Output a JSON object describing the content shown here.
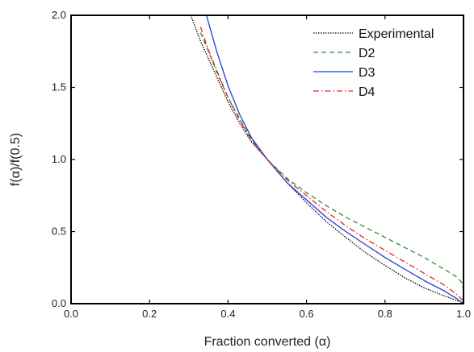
{
  "chart_data": {
    "type": "line",
    "xlabel": "Fraction converted (α)",
    "ylabel": "f(α)/f(0.5)",
    "xlim": [
      0.0,
      1.0
    ],
    "ylim": [
      0.0,
      2.0
    ],
    "x_ticks": [
      "0.0",
      "0.2",
      "0.4",
      "0.6",
      "0.8",
      "1.0"
    ],
    "y_ticks": [
      "0.0",
      "0.5",
      "1.0",
      "1.5",
      "2.0"
    ],
    "grid": false,
    "legend_position": "top-right",
    "series": [
      {
        "name": "Experimental",
        "color": "#000000",
        "dash": "1.5,1.5",
        "x": [
          0.305,
          0.33,
          0.35,
          0.38,
          0.4,
          0.43,
          0.46,
          0.5,
          0.55,
          0.6,
          0.65,
          0.7,
          0.75,
          0.8,
          0.85,
          0.9,
          0.95,
          0.98,
          1.0
        ],
        "y": [
          2.0,
          1.82,
          1.7,
          1.52,
          1.4,
          1.25,
          1.12,
          1.0,
          0.84,
          0.7,
          0.57,
          0.46,
          0.355,
          0.265,
          0.18,
          0.11,
          0.055,
          0.025,
          0.005
        ]
      },
      {
        "name": "D2",
        "color": "#2e8b2e",
        "dash": "6,4",
        "x": [
          0.33,
          0.35,
          0.38,
          0.4,
          0.43,
          0.46,
          0.5,
          0.55,
          0.6,
          0.65,
          0.7,
          0.75,
          0.8,
          0.85,
          0.9,
          0.95,
          0.98,
          0.995,
          1.0
        ],
        "y": [
          1.88,
          1.75,
          1.55,
          1.43,
          1.28,
          1.14,
          1.0,
          0.87,
          0.77,
          0.68,
          0.6,
          0.53,
          0.46,
          0.39,
          0.32,
          0.24,
          0.19,
          0.15,
          0.1
        ]
      },
      {
        "name": "D3",
        "color": "#1f3fd6",
        "dash": "",
        "x": [
          0.345,
          0.37,
          0.4,
          0.43,
          0.46,
          0.5,
          0.55,
          0.6,
          0.65,
          0.7,
          0.75,
          0.8,
          0.85,
          0.9,
          0.95,
          0.98,
          1.0
        ],
        "y": [
          2.0,
          1.76,
          1.51,
          1.31,
          1.15,
          1.0,
          0.84,
          0.72,
          0.6,
          0.5,
          0.41,
          0.32,
          0.24,
          0.16,
          0.09,
          0.04,
          0.0
        ]
      },
      {
        "name": "D4",
        "color": "#e02a1c",
        "dash": "7,3,1.5,3",
        "x": [
          0.33,
          0.35,
          0.38,
          0.4,
          0.43,
          0.46,
          0.5,
          0.55,
          0.6,
          0.65,
          0.7,
          0.75,
          0.8,
          0.85,
          0.9,
          0.95,
          0.98,
          1.0
        ],
        "y": [
          1.92,
          1.76,
          1.56,
          1.43,
          1.27,
          1.13,
          1.0,
          0.86,
          0.75,
          0.64,
          0.54,
          0.45,
          0.37,
          0.29,
          0.21,
          0.13,
          0.07,
          0.02
        ]
      }
    ]
  }
}
